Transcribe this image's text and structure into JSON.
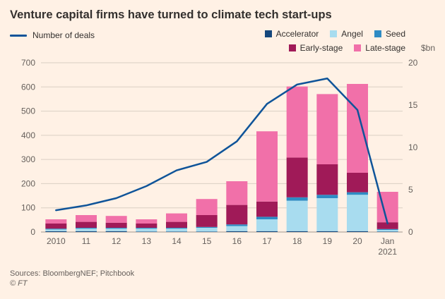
{
  "title": "Venture capital firms have turned to climate tech start-ups",
  "legend": {
    "line": {
      "label": "Number of deals",
      "color": "#0F5499"
    },
    "items": [
      {
        "key": "accelerator",
        "label": "Accelerator",
        "color": "#15477C"
      },
      {
        "key": "angel",
        "label": "Angel",
        "color": "#A8DCEF"
      },
      {
        "key": "seed",
        "label": "Seed",
        "color": "#2E8BC4"
      },
      {
        "key": "early",
        "label": "Early-stage",
        "color": "#A01A58"
      },
      {
        "key": "late",
        "label": "Late-stage",
        "color": "#F170A9"
      }
    ],
    "unit_label": "$bn"
  },
  "chart_data": {
    "type": "bar",
    "subtype": "stacked-bar-with-line",
    "categories": [
      "2010",
      "11",
      "12",
      "13",
      "14",
      "15",
      "16",
      "17",
      "18",
      "19",
      "20",
      "Jan 2021"
    ],
    "bar_series": [
      {
        "name": "Accelerator",
        "color": "#15477C",
        "values": [
          0.1,
          0.1,
          0.1,
          0.05,
          0.05,
          0.05,
          0.1,
          0.1,
          0.1,
          0.1,
          0.1,
          0.05
        ]
      },
      {
        "name": "Angel",
        "color": "#A8DCEF",
        "values": [
          0.2,
          0.3,
          0.3,
          0.35,
          0.35,
          0.45,
          0.6,
          1.4,
          3.6,
          3.9,
          4.3,
          0.2
        ]
      },
      {
        "name": "Seed",
        "color": "#2E8BC4",
        "values": [
          0.1,
          0.1,
          0.1,
          0.1,
          0.1,
          0.1,
          0.2,
          0.3,
          0.4,
          0.4,
          0.3,
          0.1
        ]
      },
      {
        "name": "Early-stage",
        "color": "#A01A58",
        "values": [
          0.6,
          0.7,
          0.6,
          0.5,
          0.7,
          1.4,
          2.3,
          1.8,
          4.7,
          3.6,
          2.3,
          0.8
        ]
      },
      {
        "name": "Late-stage",
        "color": "#F170A9",
        "values": [
          0.5,
          0.8,
          0.8,
          0.5,
          1.0,
          1.9,
          2.8,
          8.3,
          8.4,
          8.3,
          10.5,
          3.6
        ]
      }
    ],
    "line_series": {
      "name": "Number of deals",
      "color": "#0F5499",
      "values": [
        90,
        110,
        140,
        190,
        255,
        290,
        375,
        530,
        610,
        635,
        505,
        35
      ]
    },
    "left_axis": {
      "min": 0,
      "max": 700,
      "step": 100,
      "ticks": [
        0,
        100,
        200,
        300,
        400,
        500,
        600,
        700
      ]
    },
    "right_axis": {
      "min": 0,
      "max": 20,
      "step": 5,
      "ticks": [
        0,
        5,
        10,
        15,
        20
      ],
      "label": "$bn"
    },
    "grid": true,
    "legend_position": "top"
  },
  "footer": {
    "sources": "Sources: BloombergNEF; Pitchbook",
    "credit": "© FT"
  }
}
